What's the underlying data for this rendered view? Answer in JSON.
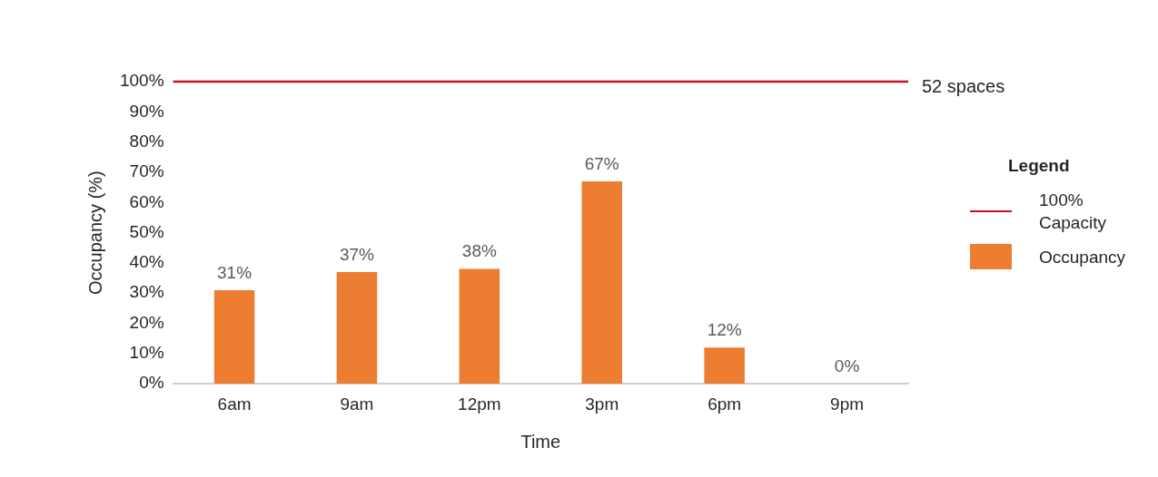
{
  "chart_data": {
    "type": "bar",
    "xlabel": "Time",
    "ylabel": "Occupancy (%)",
    "categories": [
      "6am",
      "9am",
      "12pm",
      "3pm",
      "6pm",
      "9pm"
    ],
    "series": [
      {
        "name": "Occupancy",
        "color": "#ed7d31",
        "values": [
          31,
          37,
          38,
          67,
          12,
          0
        ],
        "value_labels": [
          "31%",
          "37%",
          "38%",
          "67%",
          "12%",
          "0%"
        ]
      }
    ],
    "ylim": [
      0,
      100
    ],
    "yticks": [
      {
        "value": 0,
        "label": "0%"
      },
      {
        "value": 10,
        "label": "10%"
      },
      {
        "value": 20,
        "label": "20%"
      },
      {
        "value": 30,
        "label": "30%"
      },
      {
        "value": 40,
        "label": "40%"
      },
      {
        "value": 50,
        "label": "50%"
      },
      {
        "value": 60,
        "label": "60%"
      },
      {
        "value": 70,
        "label": "70%"
      },
      {
        "value": 80,
        "label": "80%"
      },
      {
        "value": 90,
        "label": "90%"
      },
      {
        "value": 100,
        "label": "100%"
      }
    ],
    "grid": false,
    "legend": "right",
    "legend_title": "Legend",
    "ref_lines": [
      {
        "axis": "y",
        "value": 100,
        "label": "100% Capacity",
        "color": "#c0141e"
      }
    ],
    "annotations": [
      "52 spaces"
    ]
  }
}
